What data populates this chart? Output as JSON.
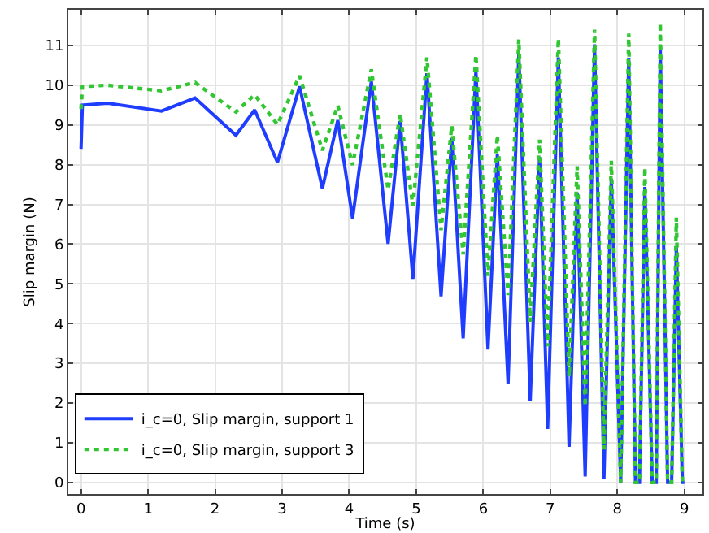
{
  "chart_data": {
    "type": "line",
    "xlabel": "Time (s)",
    "ylabel": "Slip margin (N)",
    "x": [
      0,
      0.02,
      0.4,
      1.2,
      1.7,
      2.31,
      2.59,
      2.93,
      3.26,
      3.6,
      3.83,
      4.05,
      4.33,
      4.58,
      4.76,
      4.95,
      5.16,
      5.37,
      5.53,
      5.7,
      5.89,
      6.07,
      6.21,
      6.37,
      6.53,
      6.7,
      6.84,
      6.96,
      7.12,
      7.28,
      7.4,
      7.52,
      7.66,
      7.8,
      7.91,
      8.05,
      8.17,
      8.27,
      8.33,
      8.41,
      8.52,
      8.58,
      8.64,
      8.75,
      8.81,
      8.88,
      8.97,
      9.0
    ],
    "series": [
      {
        "name": "i_c=0, Slip margin, support 1",
        "color": "#1f3dff",
        "line_style": "solid",
        "values": [
          8.4,
          9.5,
          9.55,
          9.35,
          9.68,
          8.74,
          9.38,
          8.06,
          9.97,
          7.4,
          9.12,
          6.65,
          10.1,
          6.01,
          9.1,
          5.13,
          10.3,
          4.69,
          8.67,
          3.63,
          10.37,
          3.35,
          8.26,
          2.49,
          10.78,
          2.06,
          8.19,
          1.35,
          10.7,
          0.9,
          7.3,
          0.15,
          11.03,
          0.08,
          7.65,
          0,
          10.67,
          0,
          0,
          7.44,
          0,
          0,
          10.98,
          0,
          0,
          5.94,
          0,
          0
        ]
      },
      {
        "name": "i_c=0, Slip margin, support 3",
        "color": "#33c633",
        "line_style": "dotted",
        "values": [
          9.4,
          9.97,
          10.0,
          9.86,
          10.07,
          9.33,
          9.76,
          9.01,
          10.24,
          8.36,
          9.49,
          7.99,
          10.4,
          7.37,
          9.28,
          6.97,
          10.7,
          6.35,
          8.98,
          5.74,
          10.76,
          5.2,
          8.74,
          4.72,
          11.15,
          4.05,
          8.63,
          3.43,
          11.17,
          2.67,
          7.96,
          1.92,
          11.4,
          0.83,
          8.1,
          0,
          11.3,
          0,
          0,
          7.92,
          0,
          0,
          11.57,
          0,
          0,
          6.67,
          0,
          0
        ]
      }
    ],
    "xlim": [
      -0.19,
      9.27
    ],
    "xticks": [
      0,
      1,
      2,
      3,
      4,
      5,
      6,
      7,
      8,
      9
    ],
    "ylim": [
      -0.29,
      11.9
    ],
    "yticks": [
      0,
      1,
      2,
      3,
      4,
      5,
      6,
      7,
      8,
      9,
      10,
      11
    ],
    "grid": true,
    "legend": "bottom left",
    "marker": "none"
  }
}
